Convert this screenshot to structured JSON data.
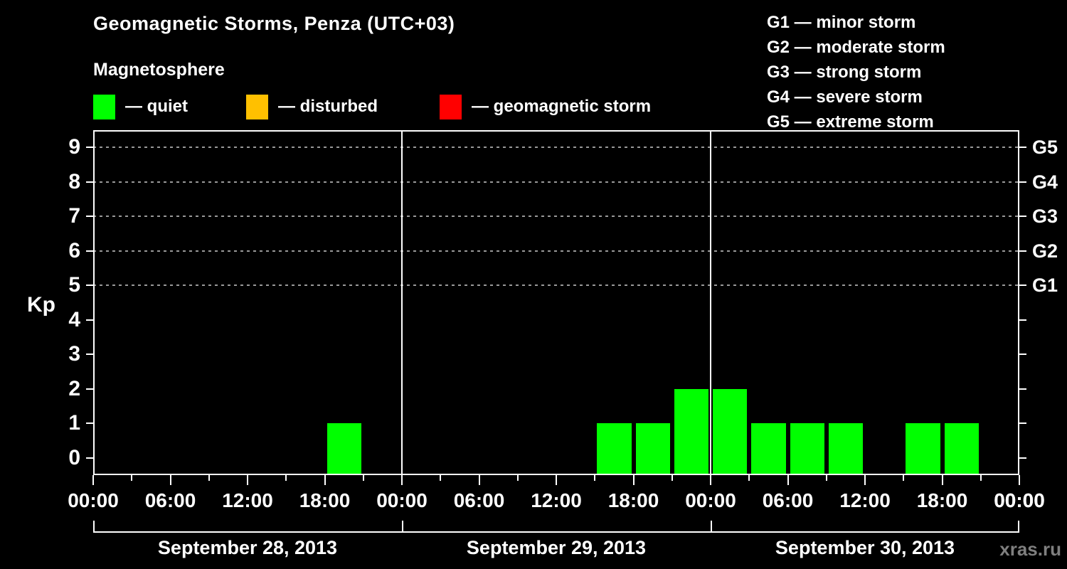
{
  "header": {
    "title": "Geomagnetic Storms, Penza (UTC+03)",
    "subtitle": "Magnetosphere",
    "legend": [
      {
        "name": "quiet",
        "label": "— quiet",
        "color": "#00ff00"
      },
      {
        "name": "disturbed",
        "label": "— disturbed",
        "color": "#ffc000"
      },
      {
        "name": "geomagnetic-storm",
        "label": "— geomagnetic storm",
        "color": "#ff0000"
      }
    ],
    "storm_scale": [
      "G1 — minor storm",
      "G2 — moderate storm",
      "G3 — strong storm",
      "G4 — severe storm",
      "G5 — extreme storm"
    ]
  },
  "watermark": "xras.ru",
  "chart_data": {
    "type": "bar",
    "title": "Geomagnetic Storms, Penza (UTC+03)",
    "ylabel": "Kp",
    "ylim": [
      -0.5,
      9.5
    ],
    "yticks": [
      0,
      1,
      2,
      3,
      4,
      5,
      6,
      7,
      8,
      9
    ],
    "grid": true,
    "grid_levels": [
      {
        "kp": 5,
        "label": "G1"
      },
      {
        "kp": 6,
        "label": "G2"
      },
      {
        "kp": 7,
        "label": "G3"
      },
      {
        "kp": 8,
        "label": "G4"
      },
      {
        "kp": 9,
        "label": "G5"
      }
    ],
    "bar_color": "#00ff00",
    "interval_hours": 3,
    "xtick_major_hours": 6,
    "xtick_labels_per_day": [
      "00:00",
      "06:00",
      "12:00",
      "18:00"
    ],
    "days": [
      {
        "date": "September 28, 2013",
        "values": [
          null,
          null,
          null,
          null,
          null,
          null,
          1,
          null
        ]
      },
      {
        "date": "September 29, 2013",
        "values": [
          null,
          null,
          null,
          null,
          null,
          1,
          1,
          2
        ]
      },
      {
        "date": "September 30, 2013",
        "values": [
          2,
          1,
          1,
          1,
          null,
          1,
          1,
          null
        ]
      }
    ]
  }
}
